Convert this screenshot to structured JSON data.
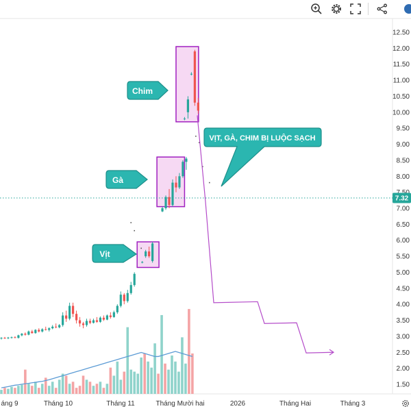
{
  "toolbar": {
    "icons": [
      "zoom-search-icon",
      "gear-icon",
      "fullscreen-icon",
      "share-icon"
    ]
  },
  "colors": {
    "up": "#26a69a",
    "down": "#ef5350",
    "vol_up": "#8fd3cb",
    "vol_down": "#f4a4a5",
    "box": "#a020c0",
    "box_fill": "#f2c9ee",
    "projection": "#b44bc9",
    "callout": "#2bb6b0",
    "ma": "#5b9bd5",
    "price_tag": "#26a69a"
  },
  "chart_data": {
    "type": "candlestick",
    "y_axis": {
      "ticks": [
        "12.50",
        "12.00",
        "11.50",
        "11.00",
        "10.50",
        "10.00",
        "9.50",
        "9.00",
        "8.50",
        "8.00",
        "7.50",
        "7.00",
        "6.50",
        "6.00",
        "5.50",
        "5.00",
        "4.50",
        "4.00",
        "3.50",
        "3.00",
        "2.50",
        "2.00",
        "1.50"
      ],
      "range": [
        1.3,
        12.6
      ],
      "current_price": "7.32"
    },
    "x_axis": {
      "labels": [
        "áng 9",
        "Tháng 10",
        "Tháng 11",
        "Tháng Mười hai",
        "2026",
        "Tháng Hai",
        "Tháng 3"
      ]
    },
    "candles": [
      {
        "o": 2.93,
        "h": 2.97,
        "l": 2.9,
        "c": 2.95
      },
      {
        "o": 2.95,
        "h": 2.98,
        "l": 2.92,
        "c": 2.94
      },
      {
        "o": 2.94,
        "h": 2.98,
        "l": 2.91,
        "c": 2.96
      },
      {
        "o": 2.96,
        "h": 2.99,
        "l": 2.93,
        "c": 2.97
      },
      {
        "o": 2.97,
        "h": 3.0,
        "l": 2.94,
        "c": 2.95
      },
      {
        "o": 2.95,
        "h": 3.05,
        "l": 2.93,
        "c": 3.03
      },
      {
        "o": 3.03,
        "h": 3.1,
        "l": 3.0,
        "c": 3.08
      },
      {
        "o": 3.08,
        "h": 3.12,
        "l": 3.02,
        "c": 3.05
      },
      {
        "o": 3.05,
        "h": 3.18,
        "l": 3.03,
        "c": 3.15
      },
      {
        "o": 3.15,
        "h": 3.2,
        "l": 3.08,
        "c": 3.1
      },
      {
        "o": 3.1,
        "h": 3.22,
        "l": 3.08,
        "c": 3.2
      },
      {
        "o": 3.2,
        "h": 3.25,
        "l": 3.12,
        "c": 3.15
      },
      {
        "o": 3.15,
        "h": 3.25,
        "l": 3.12,
        "c": 3.22
      },
      {
        "o": 3.22,
        "h": 3.3,
        "l": 3.18,
        "c": 3.2
      },
      {
        "o": 3.2,
        "h": 3.28,
        "l": 3.15,
        "c": 3.25
      },
      {
        "o": 3.25,
        "h": 3.35,
        "l": 3.22,
        "c": 3.3
      },
      {
        "o": 3.3,
        "h": 3.4,
        "l": 3.25,
        "c": 3.28
      },
      {
        "o": 3.28,
        "h": 3.38,
        "l": 3.25,
        "c": 3.35
      },
      {
        "o": 3.35,
        "h": 3.75,
        "l": 3.3,
        "c": 3.65
      },
      {
        "o": 3.65,
        "h": 3.8,
        "l": 3.45,
        "c": 3.55
      },
      {
        "o": 3.55,
        "h": 4.05,
        "l": 3.5,
        "c": 3.95
      },
      {
        "o": 3.95,
        "h": 4.05,
        "l": 3.6,
        "c": 3.7
      },
      {
        "o": 3.7,
        "h": 3.8,
        "l": 3.4,
        "c": 3.5
      },
      {
        "o": 3.5,
        "h": 3.6,
        "l": 3.3,
        "c": 3.4
      },
      {
        "o": 3.4,
        "h": 3.45,
        "l": 3.25,
        "c": 3.35
      },
      {
        "o": 3.35,
        "h": 3.55,
        "l": 3.3,
        "c": 3.48
      },
      {
        "o": 3.48,
        "h": 3.55,
        "l": 3.38,
        "c": 3.42
      },
      {
        "o": 3.42,
        "h": 3.55,
        "l": 3.4,
        "c": 3.5
      },
      {
        "o": 3.5,
        "h": 3.6,
        "l": 3.42,
        "c": 3.45
      },
      {
        "o": 3.45,
        "h": 3.62,
        "l": 3.42,
        "c": 3.58
      },
      {
        "o": 3.58,
        "h": 3.65,
        "l": 3.48,
        "c": 3.52
      },
      {
        "o": 3.52,
        "h": 3.68,
        "l": 3.5,
        "c": 3.65
      },
      {
        "o": 3.65,
        "h": 3.75,
        "l": 3.55,
        "c": 3.6
      },
      {
        "o": 3.6,
        "h": 3.8,
        "l": 3.58,
        "c": 3.75
      },
      {
        "o": 3.75,
        "h": 4.0,
        "l": 3.7,
        "c": 3.95
      },
      {
        "o": 3.95,
        "h": 4.4,
        "l": 3.9,
        "c": 4.3
      },
      {
        "o": 4.3,
        "h": 4.35,
        "l": 4.0,
        "c": 4.1
      },
      {
        "o": 4.1,
        "h": 4.45,
        "l": 4.05,
        "c": 4.35
      },
      {
        "o": 4.35,
        "h": 4.7,
        "l": 4.3,
        "c": 4.6
      },
      {
        "o": 4.6,
        "h": 5.0,
        "l": 4.55,
        "c": 4.95
      },
      {
        "o": 5.3,
        "h": 5.35,
        "l": 5.28,
        "c": 5.32
      },
      {
        "o": 5.5,
        "h": 5.7,
        "l": 5.45,
        "c": 5.65
      },
      {
        "o": 5.65,
        "h": 5.8,
        "l": 5.45,
        "c": 5.5
      },
      {
        "o": 5.35,
        "h": 5.95,
        "l": 5.3,
        "c": 5.9
      },
      {
        "o": 6.9,
        "h": 7.05,
        "l": 6.88,
        "c": 7.0
      },
      {
        "o": 7.0,
        "h": 7.4,
        "l": 6.95,
        "c": 7.35
      },
      {
        "o": 7.35,
        "h": 7.6,
        "l": 7.0,
        "c": 7.1
      },
      {
        "o": 7.1,
        "h": 7.9,
        "l": 7.05,
        "c": 7.8
      },
      {
        "o": 7.8,
        "h": 8.0,
        "l": 7.5,
        "c": 7.65
      },
      {
        "o": 7.65,
        "h": 8.1,
        "l": 7.6,
        "c": 8.0
      },
      {
        "o": 8.0,
        "h": 8.5,
        "l": 7.95,
        "c": 8.45
      },
      {
        "o": 8.45,
        "h": 8.6,
        "l": 8.2,
        "c": 8.55
      },
      {
        "o": 9.8,
        "h": 9.85,
        "l": 9.75,
        "c": 9.8
      },
      {
        "o": 10.0,
        "h": 10.5,
        "l": 9.8,
        "c": 10.4
      },
      {
        "o": 11.2,
        "h": 11.25,
        "l": 11.15,
        "c": 11.2
      },
      {
        "o": 11.9,
        "h": 11.95,
        "l": 10.2,
        "c": 10.3
      },
      {
        "o": 10.3,
        "h": 10.45,
        "l": 9.95,
        "c": 10.05
      }
    ],
    "volume": {
      "range": [
        0,
        5
      ],
      "values": [
        0.2,
        0.3,
        0.25,
        0.35,
        0.3,
        0.4,
        0.45,
        1.2,
        0.5,
        0.4,
        0.6,
        0.3,
        0.5,
        0.8,
        0.4,
        0.6,
        0.3,
        0.7,
        1.0,
        0.9,
        0.5,
        0.6,
        0.3,
        0.4,
        0.9,
        0.7,
        0.6,
        0.4,
        0.5,
        0.6,
        0.3,
        0.5,
        1.3,
        0.9,
        1.6,
        0.7,
        1.1,
        3.3,
        1.2,
        1.1,
        1.0,
        1.8,
        2.0,
        1.6,
        1.3,
        2.5,
        1.0,
        3.9,
        1.5,
        1.2,
        1.9,
        1.6,
        1.1,
        2.8,
        1.5,
        4.2,
        2.0
      ],
      "ma": [
        0.3,
        0.33,
        0.36,
        0.4,
        0.43,
        0.45,
        0.48,
        0.5,
        0.52,
        0.55,
        0.57,
        0.6,
        0.62,
        0.66,
        0.7,
        0.75,
        0.8,
        0.85,
        0.9,
        0.95,
        1.0,
        1.05,
        1.1,
        1.15,
        1.2,
        1.25,
        1.3,
        1.35,
        1.4,
        1.45,
        1.5,
        1.55,
        1.6,
        1.65,
        1.7,
        1.75,
        1.8,
        1.85,
        1.9,
        1.95,
        2.0,
        2.05,
        2.0,
        1.95,
        1.9,
        1.85,
        1.85,
        1.9,
        1.95,
        2.0,
        2.05,
        2.1,
        2.05,
        2.0,
        1.95,
        1.9,
        1.85
      ]
    },
    "dots": [
      {
        "i": 57,
        "v": 9.25
      },
      {
        "i": 58,
        "v": 9.05
      },
      {
        "i": 59,
        "v": 8.3
      },
      {
        "i": 61,
        "v": 7.8
      },
      {
        "i": 38,
        "v": 6.55
      },
      {
        "i": 39,
        "v": 6.3
      },
      {
        "i": 41,
        "v": 5.75
      }
    ],
    "projection_path": [
      [
        288,
        9.9
      ],
      [
        300,
        7.2
      ],
      [
        312,
        4.05
      ],
      [
        376,
        4.08
      ],
      [
        386,
        3.4
      ],
      [
        433,
        3.42
      ],
      [
        447,
        2.48
      ],
      [
        487,
        2.5
      ]
    ],
    "boxes": [
      {
        "label": "Vịt",
        "price_range": [
          5.15,
          5.95
        ]
      },
      {
        "label": "Gà",
        "price_range": [
          7.05,
          8.6
        ]
      },
      {
        "label": "Chim",
        "price_range": [
          9.7,
          12.05
        ]
      }
    ],
    "annotations": [
      {
        "text": "Chim"
      },
      {
        "text": "Gà"
      },
      {
        "text": "Vịt"
      },
      {
        "text": "VỊT, GÀ, CHIM BỊ LUỘC SẠCH"
      }
    ]
  }
}
